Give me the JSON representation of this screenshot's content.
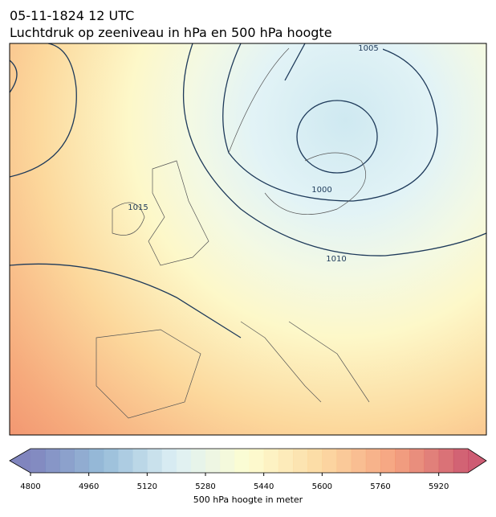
{
  "header": {
    "date": "05-11-1824 12 UTC",
    "title": "Luchtdruk op zeeniveau in hPa en 500 hPa hoogte"
  },
  "map": {
    "contour_labels": [
      "1005",
      "1000",
      "1010",
      "1015"
    ]
  },
  "colorbar": {
    "label": "500 hPa hoogte in meter",
    "lim": [
      4800,
      6000
    ],
    "step": 40,
    "ticks": [
      4800,
      4960,
      5120,
      5280,
      5440,
      5600,
      5760,
      5920
    ],
    "colormap": [
      "#6a70b3",
      "#86b1d3",
      "#d8eef3",
      "#fdfcc9",
      "#fcd393",
      "#f3936b",
      "#c5405a"
    ]
  }
}
